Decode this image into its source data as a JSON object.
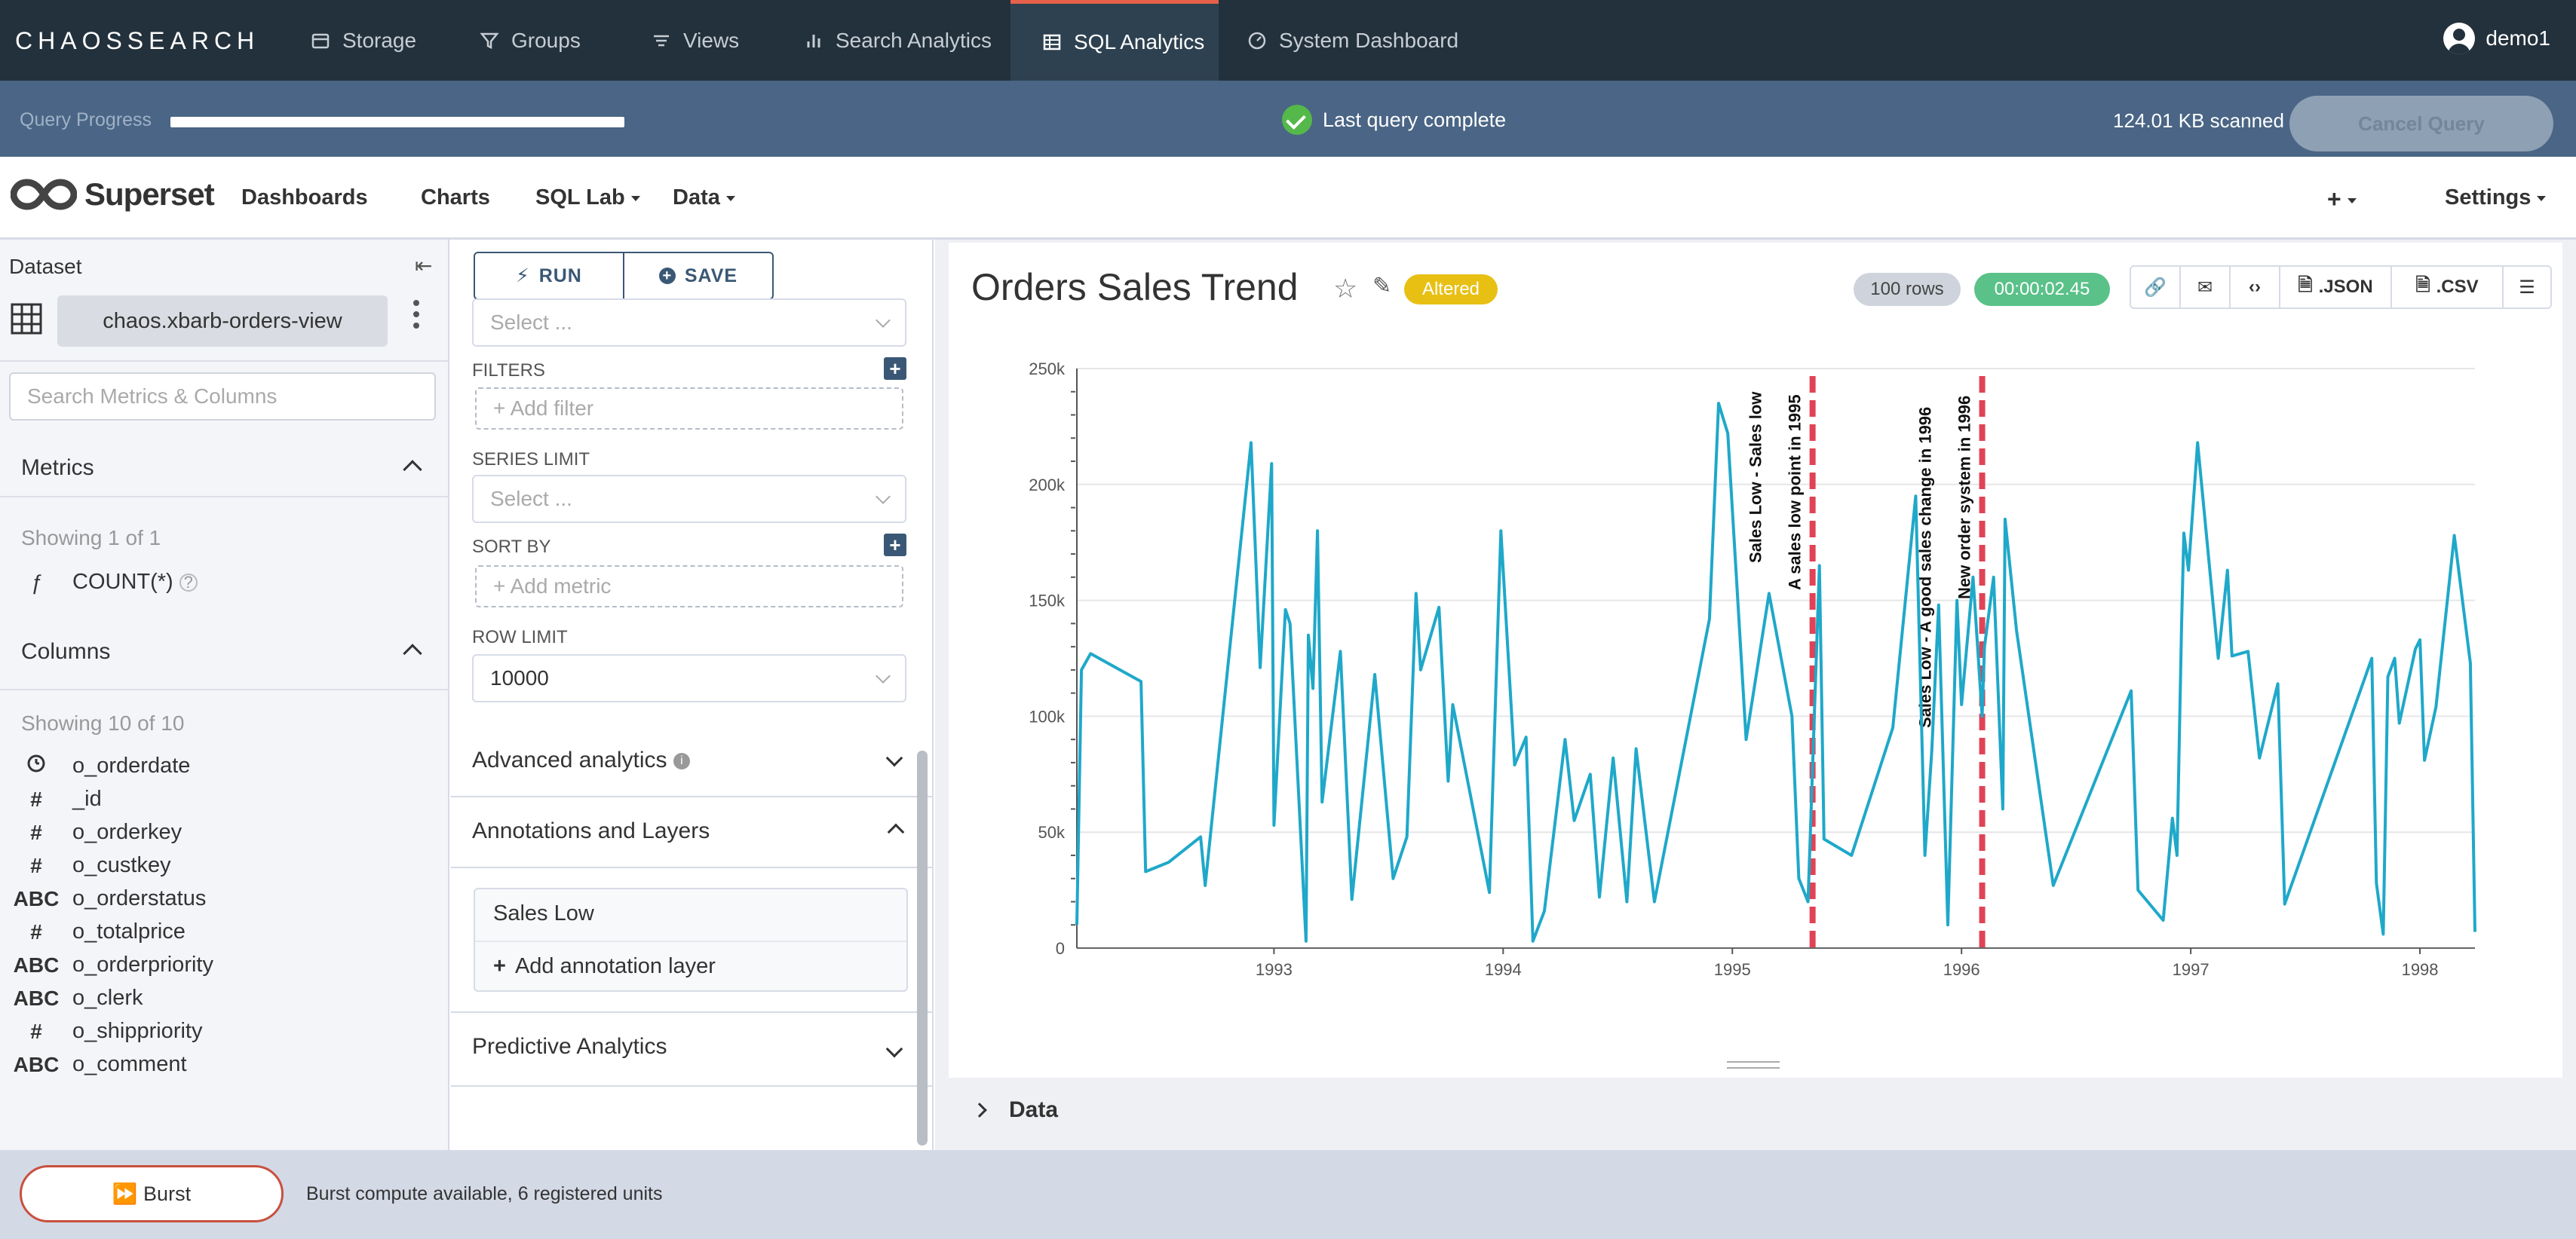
{
  "topnav": {
    "logo": "CHAOSSEARCH",
    "items": [
      {
        "label": "Storage",
        "icon": "storage-icon"
      },
      {
        "label": "Groups",
        "icon": "filter-icon"
      },
      {
        "label": "Views",
        "icon": "list-icon"
      },
      {
        "label": "Search Analytics",
        "icon": "bar-chart-icon"
      },
      {
        "label": "SQL Analytics",
        "icon": "table-icon",
        "active": true
      },
      {
        "label": "System Dashboard",
        "icon": "gauge-icon"
      }
    ],
    "user": "demo1"
  },
  "query": {
    "label": "Query Progress",
    "progress": 1.0,
    "status": "Last query complete",
    "scanned": "124.01 KB scanned",
    "cancel": "Cancel Query"
  },
  "superset": {
    "brand": "Superset",
    "menus": [
      "Dashboards",
      "Charts",
      "SQL Lab",
      "Data"
    ],
    "settings": "Settings"
  },
  "dataset": {
    "title": "Dataset",
    "name": "chaos.xbarb-orders-view",
    "search_placeholder": "Search Metrics & Columns",
    "metrics_title": "Metrics",
    "metrics_showing": "Showing 1 of 1",
    "metrics": [
      {
        "type": "ƒ",
        "name": "COUNT(*)"
      }
    ],
    "columns_title": "Columns",
    "columns_showing": "Showing 10 of 10",
    "columns": [
      {
        "type": "clock",
        "name": "o_orderdate"
      },
      {
        "type": "#",
        "name": "_id"
      },
      {
        "type": "#",
        "name": "o_orderkey"
      },
      {
        "type": "#",
        "name": "o_custkey"
      },
      {
        "type": "ABC",
        "name": "o_orderstatus"
      },
      {
        "type": "#",
        "name": "o_totalprice"
      },
      {
        "type": "ABC",
        "name": "o_orderpriority"
      },
      {
        "type": "ABC",
        "name": "o_clerk"
      },
      {
        "type": "#",
        "name": "o_shippriority"
      },
      {
        "type": "ABC",
        "name": "o_comment"
      }
    ]
  },
  "controls": {
    "run": "RUN",
    "save": "SAVE",
    "select_placeholder": "Select ...",
    "filters_label": "FILTERS",
    "add_filter": "Add filter",
    "series_limit_label": "SERIES LIMIT",
    "series_limit_placeholder": "Select ...",
    "sort_by_label": "SORT BY",
    "add_metric": "Add metric",
    "row_limit_label": "ROW LIMIT",
    "row_limit_value": "10000",
    "advanced": "Advanced analytics",
    "annotations": "Annotations and Layers",
    "annotation_item": "Sales Low",
    "add_annotation": "Add annotation layer",
    "predictive": "Predictive Analytics"
  },
  "chart_header": {
    "title": "Orders Sales Trend",
    "altered": "Altered",
    "rows": "100 rows",
    "time": "00:00:02.45",
    "json": ".JSON",
    "csv": ".CSV",
    "data_section": "Data"
  },
  "colors": {
    "accent": "#e5614a",
    "line": "#1fa8c9",
    "annotation": "#e04355",
    "altered": "#e8c014",
    "time_badge": "#5ac189"
  },
  "chart_data": {
    "type": "line",
    "x_ticks": [
      "1993",
      "1994",
      "1995",
      "1996",
      "1997",
      "1998"
    ],
    "y_ticks": [
      "0",
      "50k",
      "100k",
      "150k",
      "200k",
      "250k"
    ],
    "ylim": [
      0,
      250000
    ],
    "xlim": [
      1992.14,
      1998.24
    ],
    "series": [
      {
        "points": [
          [
            1992.14,
            10000
          ],
          [
            1992.16,
            120000
          ],
          [
            1992.2,
            127000
          ],
          [
            1992.42,
            115000
          ],
          [
            1992.44,
            33000
          ],
          [
            1992.54,
            37000
          ],
          [
            1992.68,
            48000
          ],
          [
            1992.7,
            27000
          ],
          [
            1992.9,
            218000
          ],
          [
            1992.94,
            121000
          ],
          [
            1992.99,
            209000
          ],
          [
            1993.0,
            53000
          ],
          [
            1993.05,
            146000
          ],
          [
            1993.07,
            140000
          ],
          [
            1993.14,
            3000
          ],
          [
            1993.15,
            135000
          ],
          [
            1993.17,
            112000
          ],
          [
            1993.19,
            180000
          ],
          [
            1993.21,
            63000
          ],
          [
            1993.29,
            128000
          ],
          [
            1993.34,
            21000
          ],
          [
            1993.44,
            118000
          ],
          [
            1993.52,
            30000
          ],
          [
            1993.58,
            48000
          ],
          [
            1993.62,
            153000
          ],
          [
            1993.64,
            120000
          ],
          [
            1993.72,
            147000
          ],
          [
            1993.76,
            72000
          ],
          [
            1993.78,
            105000
          ],
          [
            1993.94,
            24000
          ],
          [
            1993.99,
            180000
          ],
          [
            1994.05,
            79000
          ],
          [
            1994.1,
            91000
          ],
          [
            1994.13,
            3000
          ],
          [
            1994.18,
            16000
          ],
          [
            1994.27,
            90000
          ],
          [
            1994.31,
            55000
          ],
          [
            1994.38,
            75000
          ],
          [
            1994.42,
            22000
          ],
          [
            1994.48,
            82000
          ],
          [
            1994.54,
            20000
          ],
          [
            1994.58,
            86000
          ],
          [
            1994.66,
            20000
          ],
          [
            1994.9,
            142000
          ],
          [
            1994.94,
            235000
          ],
          [
            1994.98,
            222000
          ],
          [
            1995.06,
            90000
          ],
          [
            1995.16,
            153000
          ],
          [
            1995.26,
            100000
          ],
          [
            1995.29,
            30000
          ],
          [
            1995.33,
            20000
          ],
          [
            1995.38,
            165000
          ],
          [
            1995.4,
            47000
          ],
          [
            1995.52,
            40000
          ],
          [
            1995.7,
            95000
          ],
          [
            1995.8,
            195000
          ],
          [
            1995.84,
            40000
          ],
          [
            1995.87,
            85000
          ],
          [
            1995.9,
            148000
          ],
          [
            1995.94,
            10000
          ],
          [
            1995.98,
            150000
          ],
          [
            1996.0,
            105000
          ],
          [
            1996.05,
            160000
          ],
          [
            1996.09,
            100000
          ],
          [
            1996.1,
            130000
          ],
          [
            1996.14,
            160000
          ],
          [
            1996.18,
            60000
          ],
          [
            1996.19,
            185000
          ],
          [
            1996.24,
            137000
          ],
          [
            1996.4,
            27000
          ],
          [
            1996.74,
            111000
          ],
          [
            1996.77,
            25000
          ],
          [
            1996.88,
            12000
          ],
          [
            1996.92,
            56000
          ],
          [
            1996.94,
            40000
          ],
          [
            1996.96,
            140000
          ],
          [
            1996.97,
            179000
          ],
          [
            1996.99,
            163000
          ],
          [
            1997.03,
            218000
          ],
          [
            1997.12,
            125000
          ],
          [
            1997.16,
            163000
          ],
          [
            1997.18,
            126000
          ],
          [
            1997.25,
            128000
          ],
          [
            1997.3,
            82000
          ],
          [
            1997.38,
            114000
          ],
          [
            1997.41,
            19000
          ],
          [
            1997.79,
            125000
          ],
          [
            1997.81,
            28000
          ],
          [
            1997.84,
            6000
          ],
          [
            1997.86,
            117000
          ],
          [
            1997.89,
            125000
          ],
          [
            1997.91,
            97000
          ],
          [
            1997.98,
            129000
          ],
          [
            1998.0,
            133000
          ],
          [
            1998.02,
            81000
          ],
          [
            1998.07,
            104000
          ],
          [
            1998.15,
            178000
          ],
          [
            1998.22,
            123000
          ],
          [
            1998.24,
            7000
          ]
        ]
      }
    ],
    "annotations": [
      {
        "x": 1995.35,
        "label": "Sales Low - Sales low",
        "sub": "A sales low point in 1995"
      },
      {
        "x": 1996.09,
        "label": "Sales Low - A good sales change in 1996",
        "sub": "New order system in 1996"
      }
    ]
  },
  "footer": {
    "burst": "Burst",
    "info": "Burst compute available, 6 registered units"
  }
}
